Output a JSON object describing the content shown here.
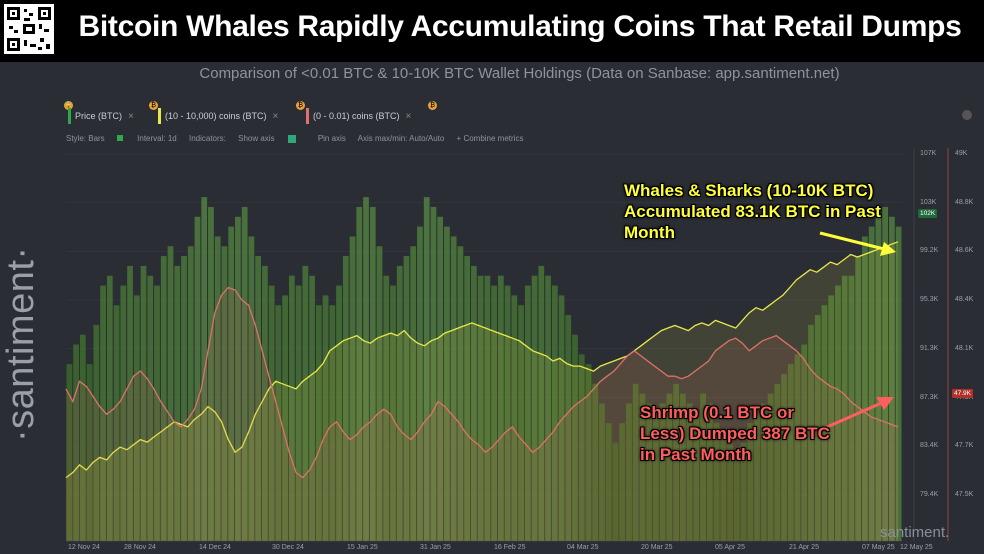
{
  "title": "Bitcoin Whales Rapidly Accumulating Coins That Retail Dumps",
  "subtitle": "Comparison of <0.01 BTC & 10-10K BTC Wallet Holdings (Data on Sanbase: app.santiment.net)",
  "brand": "·santiment·",
  "watermark": "santiment.",
  "legend": [
    {
      "label": "Price (BTC)",
      "color": "#2ea84a"
    },
    {
      "label": "(10 - 10,000) coins (BTC)",
      "color": "#e8e84a"
    },
    {
      "label": "(0 - 0.01) coins (BTC)",
      "color": "#e0706a"
    }
  ],
  "toolbar": {
    "style": "Style: Bars",
    "interval": "Interval: 1d",
    "indicators": "Indicators:",
    "show_axis": "Show axis",
    "pin_axis": "Pin axis",
    "axis_max": "Axis max/min: Auto/Auto",
    "combine": "+ Combine metrics"
  },
  "annotations": {
    "whales": "Whales & Sharks (10-10K BTC) Accumulated 83.1K BTC in Past Month",
    "shrimp": "Shrimp (0.1 BTC or Less) Dumped 387 BTC in Past Month"
  },
  "colors": {
    "price": "#3d8a2a",
    "whales": "#e8e84a",
    "shrimp": "#e0706a",
    "background": "#2a2d33"
  },
  "chart_data": {
    "type": "bar",
    "x_tick_labels": [
      "12 Nov 24",
      "28 Nov 24",
      "14 Dec 24",
      "30 Dec 24",
      "15 Jan 25",
      "31 Jan 25",
      "16 Feb 25",
      "04 Mar 25",
      "20 Mar 25",
      "05 Apr 25",
      "21 Apr 25",
      "07 May 25",
      "12 May 25"
    ],
    "y_left_ticks": [
      "107K",
      "103K",
      "99.2K",
      "95.3K",
      "91.3K",
      "87.3K",
      "83.4K",
      "79.4K"
    ],
    "y_right_ticks": [
      "49K",
      "48.8K",
      "48.6K",
      "48.4K",
      "48.1K",
      "47.9K",
      "47.7K",
      "47.5K"
    ],
    "price_label": "102K",
    "shrimp_label": "47.9K",
    "whales_label": "",
    "series": [
      {
        "name": "Price (BTC)",
        "type": "bar",
        "values": [
          88,
          90,
          91,
          88,
          92,
          96,
          97,
          94,
          96,
          98,
          95,
          98,
          97,
          96,
          99,
          100,
          98,
          99,
          100,
          103,
          105,
          104,
          101,
          100,
          102,
          103,
          104,
          101,
          99,
          98,
          96,
          94,
          95,
          97,
          96,
          98,
          97,
          94,
          95,
          94,
          96,
          99,
          101,
          104,
          105,
          104,
          100,
          97,
          96,
          98,
          99,
          100,
          102,
          105,
          104,
          103,
          102,
          101,
          100,
          99,
          98,
          97,
          97,
          96,
          97,
          96,
          95,
          94,
          96,
          97,
          98,
          97,
          96,
          95,
          93,
          91,
          89,
          88,
          86,
          84,
          82,
          80,
          82,
          84,
          86,
          85,
          84,
          83,
          84,
          85,
          86,
          85,
          84,
          83,
          85,
          84,
          82,
          81,
          80,
          79,
          80,
          82,
          83,
          84,
          85,
          86,
          87,
          88,
          89,
          90,
          92,
          93,
          94,
          95,
          96,
          97,
          97,
          99,
          101,
          102,
          103,
          104,
          103,
          102
        ]
      },
      {
        "name": "(10 - 10,000) coins (BTC)",
        "type": "line",
        "values": [
          47.7,
          47.72,
          47.75,
          47.73,
          47.76,
          47.78,
          47.77,
          47.8,
          47.82,
          47.81,
          47.83,
          47.85,
          47.84,
          47.86,
          47.88,
          47.9,
          47.92,
          47.91,
          47.9,
          47.93,
          47.95,
          47.98,
          47.96,
          47.92,
          47.85,
          47.8,
          47.82,
          47.88,
          47.95,
          48.0,
          48.05,
          48.08,
          48.07,
          48.06,
          48.05,
          48.08,
          48.1,
          48.12,
          48.15,
          48.2,
          48.22,
          48.24,
          48.25,
          48.26,
          48.24,
          48.23,
          48.25,
          48.26,
          48.27,
          48.26,
          48.28,
          48.25,
          48.23,
          48.22,
          48.24,
          48.25,
          48.27,
          48.28,
          48.29,
          48.3,
          48.31,
          48.3,
          48.29,
          48.28,
          48.27,
          48.26,
          48.25,
          48.24,
          48.22,
          48.2,
          48.19,
          48.18,
          48.16,
          48.17,
          48.15,
          48.14,
          48.14,
          48.13,
          48.12,
          48.14,
          48.15,
          48.16,
          48.17,
          48.18,
          48.2,
          48.22,
          48.24,
          48.26,
          48.28,
          48.29,
          48.3,
          48.29,
          48.28,
          48.3,
          48.31,
          48.3,
          48.32,
          48.31,
          48.3,
          48.29,
          48.32,
          48.35,
          48.37,
          48.36,
          48.38,
          48.4,
          48.42,
          48.45,
          48.48,
          48.5,
          48.52,
          48.51,
          48.53,
          48.55,
          48.54,
          48.56,
          48.58,
          48.57,
          48.58,
          48.59,
          48.6,
          48.61,
          48.62,
          48.63
        ]
      },
      {
        "name": "(0 - 0.01) coins (BTC)",
        "type": "line",
        "values": [
          48.05,
          48.0,
          48.08,
          48.06,
          48.02,
          47.98,
          47.95,
          47.97,
          48.0,
          48.05,
          48.1,
          48.12,
          48.09,
          48.05,
          48.0,
          47.96,
          47.92,
          47.9,
          47.93,
          47.97,
          48.05,
          48.2,
          48.35,
          48.42,
          48.45,
          48.44,
          48.4,
          48.38,
          48.3,
          48.2,
          48.1,
          48.0,
          47.9,
          47.8,
          47.72,
          47.7,
          47.73,
          47.78,
          47.85,
          47.9,
          47.92,
          47.88,
          47.85,
          47.87,
          47.9,
          47.92,
          47.95,
          47.97,
          47.95,
          47.9,
          47.87,
          47.85,
          47.88,
          47.92,
          47.95,
          48.0,
          47.98,
          47.95,
          47.92,
          47.88,
          47.85,
          47.83,
          47.8,
          47.82,
          47.85,
          47.88,
          47.9,
          47.86,
          47.83,
          47.8,
          47.82,
          47.85,
          47.88,
          47.92,
          47.95,
          47.98,
          48.0,
          48.02,
          48.05,
          48.08,
          48.1,
          48.12,
          48.15,
          48.18,
          48.2,
          48.18,
          48.16,
          48.14,
          48.12,
          48.1,
          48.1,
          48.09,
          48.1,
          48.12,
          48.14,
          48.16,
          48.2,
          48.22,
          48.24,
          48.25,
          48.23,
          48.2,
          48.22,
          48.24,
          48.25,
          48.26,
          48.24,
          48.22,
          48.2,
          48.17,
          48.13,
          48.1,
          48.08,
          48.06,
          48.05,
          48.03,
          48.0,
          47.98,
          47.96,
          47.94,
          47.93,
          47.92,
          47.91,
          47.9
        ]
      }
    ],
    "ylim_left": [
      77000,
      108000
    ],
    "ylim_right": [
      47.45,
      49.0
    ]
  }
}
